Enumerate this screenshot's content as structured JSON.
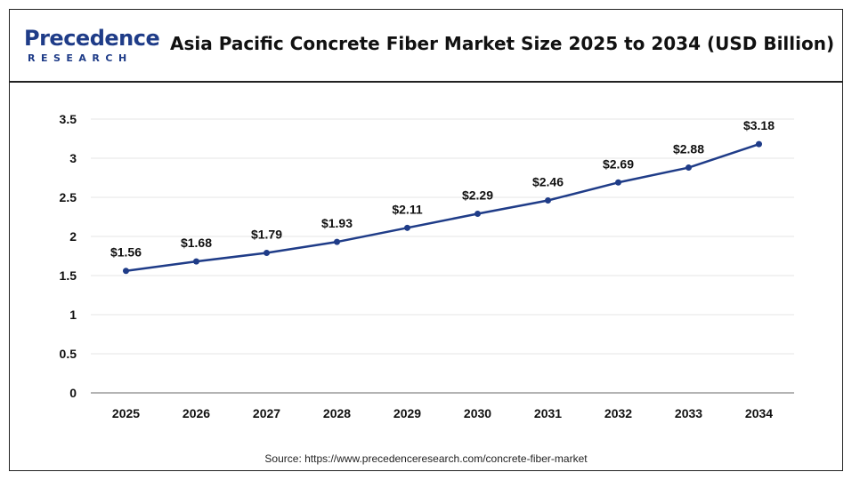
{
  "header": {
    "logo_main": "Precedence",
    "logo_sub": "RESEARCH",
    "title": "Asia Pacific Concrete Fiber Market Size 2025 to 2034 (USD Billion)"
  },
  "source": "Source: https://www.precedenceresearch.com/concrete-fiber-market",
  "colors": {
    "line": "#1f3c88",
    "grid": "#e4e4e4",
    "axis": "#888888",
    "text": "#111111"
  },
  "chart_data": {
    "type": "line",
    "title": "Asia Pacific Concrete Fiber Market Size 2025 to 2034 (USD Billion)",
    "categories": [
      "2025",
      "2026",
      "2027",
      "2028",
      "2029",
      "2030",
      "2031",
      "2032",
      "2033",
      "2034"
    ],
    "values": [
      1.56,
      1.68,
      1.79,
      1.93,
      2.11,
      2.29,
      2.46,
      2.69,
      2.88,
      3.18
    ],
    "data_labels": [
      "$1.56",
      "$1.68",
      "$1.79",
      "$1.93",
      "$2.11",
      "$2.29",
      "$2.46",
      "$2.69",
      "$2.88",
      "$3.18"
    ],
    "yticks": [
      "0",
      "0.5",
      "1",
      "1.5",
      "2",
      "2.5",
      "3",
      "3.5"
    ],
    "ylim": [
      0,
      3.5
    ],
    "grid": true,
    "legend": "none"
  }
}
